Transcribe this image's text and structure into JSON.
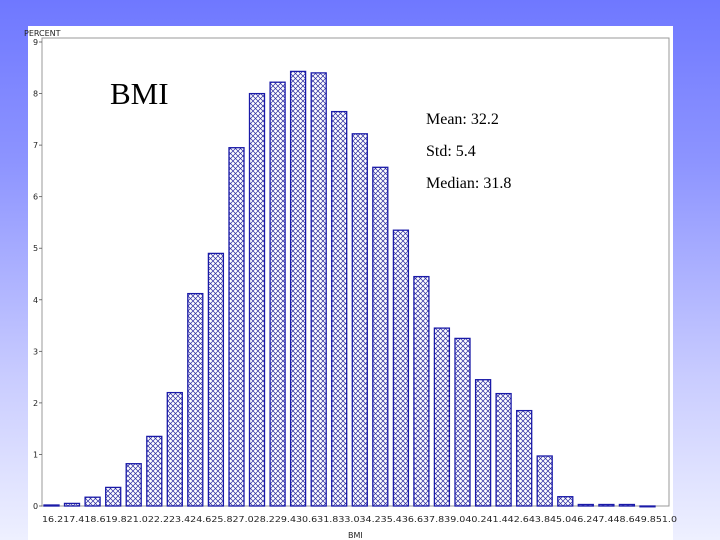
{
  "chart_data": {
    "type": "bar",
    "title": "BMI",
    "xlabel": "BMI",
    "ylabel": "PERCENT",
    "ylim": [
      0,
      9
    ],
    "yticks": [
      "0",
      "1",
      "2",
      "3",
      "4",
      "5",
      "6",
      "7",
      "8",
      "9"
    ],
    "grid": false,
    "categories": [
      "16.2",
      "17.4",
      "18.6",
      "19.8",
      "21.0",
      "22.2",
      "23.4",
      "24.6",
      "25.8",
      "27.0",
      "28.2",
      "29.4",
      "30.6",
      "31.8",
      "33.0",
      "34.2",
      "35.4",
      "36.6",
      "37.8",
      "39.0",
      "40.2",
      "41.4",
      "42.6",
      "43.8",
      "45.0",
      "46.2",
      "47.4",
      "48.6",
      "49.8",
      "51.0"
    ],
    "xtick_text": "16.217.418.619.821.022.223.424.625.827.028.229.430.631.833.034.235.436.637.839.040.241.442.643.845.046.247.448.649.851.0",
    "values": [
      0.02,
      0.05,
      0.17,
      0.36,
      0.82,
      1.35,
      2.2,
      4.12,
      4.9,
      6.95,
      8.0,
      8.22,
      8.43,
      8.4,
      7.65,
      7.22,
      6.57,
      5.35,
      4.45,
      3.45,
      3.25,
      2.45,
      2.18,
      1.85,
      0.97,
      0.18,
      0.03,
      0.03,
      0.03,
      0.0
    ],
    "bar_color": "#1a1aa8",
    "annotations": {
      "mean": "Mean:  32.2",
      "std": "Std:  5.4",
      "median": "Median: 31.8"
    }
  }
}
